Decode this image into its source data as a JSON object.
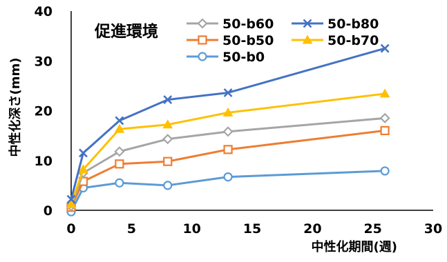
{
  "chart_data": {
    "type": "line",
    "title": "",
    "annotation": "促進環境",
    "xlabel": "中性化期間(週)",
    "ylabel": "中性化深さ(mm)",
    "xlim": [
      0,
      30
    ],
    "ylim": [
      0,
      40
    ],
    "xticks": [
      "0",
      "5",
      "10",
      "15",
      "20",
      "25",
      "30"
    ],
    "yticks": [
      "0",
      "10",
      "20",
      "30",
      "40"
    ],
    "grid": "none",
    "legend_position": "top",
    "series": [
      {
        "name": "50-b60",
        "marker": "diamond",
        "color": "#a5a5a5",
        "x": [
          0,
          1,
          4,
          8,
          13,
          26
        ],
        "y": [
          0.8,
          7.5,
          11.8,
          14.3,
          15.8,
          18.5
        ]
      },
      {
        "name": "50-b80",
        "marker": "x",
        "color": "#4472c4",
        "x": [
          0,
          1,
          4,
          8,
          13,
          26
        ],
        "y": [
          2.2,
          11.5,
          18.0,
          22.2,
          23.6,
          32.5
        ]
      },
      {
        "name": "50-b50",
        "marker": "square",
        "color": "#ed7d31",
        "x": [
          0,
          1,
          4,
          8,
          13,
          26
        ],
        "y": [
          0.6,
          5.8,
          9.3,
          9.8,
          12.2,
          16.0
        ]
      },
      {
        "name": "50-b70",
        "marker": "triangle",
        "color": "#ffc000",
        "x": [
          0,
          1,
          4,
          8,
          13,
          26
        ],
        "y": [
          1.2,
          8.2,
          16.3,
          17.2,
          19.6,
          23.4
        ]
      },
      {
        "name": "50-b0",
        "marker": "circle",
        "color": "#5b9bd5",
        "x": [
          0,
          1,
          4,
          8,
          13,
          26
        ],
        "y": [
          -0.3,
          4.5,
          5.5,
          5.0,
          6.7,
          7.9
        ]
      }
    ]
  }
}
